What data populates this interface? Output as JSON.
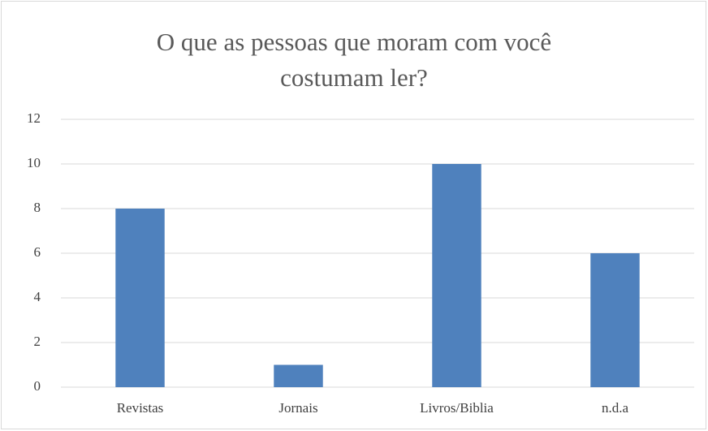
{
  "chart_data": {
    "type": "bar",
    "title": "O que as pessoas que moram com você costumam ler?",
    "categories": [
      "Revistas",
      "Jornais",
      "Livros/Biblia",
      "n.d.a"
    ],
    "values": [
      8,
      1,
      10,
      6
    ],
    "color": "#4f81bd",
    "ylim": [
      0,
      12
    ],
    "yticks": [
      0,
      2,
      4,
      6,
      8,
      10,
      12
    ],
    "grid": true
  }
}
